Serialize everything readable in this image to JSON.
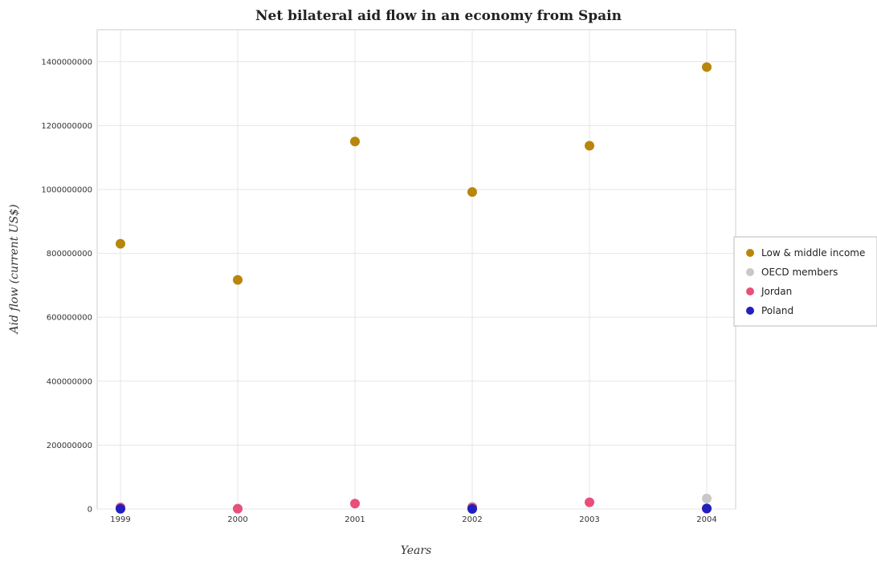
{
  "chart_data": {
    "type": "scatter",
    "title": "Net bilateral aid flow in an economy from Spain",
    "xlabel": "Years",
    "ylabel": "Aid flow (current US$)",
    "categories": [
      "1999",
      "2000",
      "2001",
      "2002",
      "2003",
      "2004"
    ],
    "ylim": [
      0,
      1500000000
    ],
    "yticks": [
      0,
      200000000,
      400000000,
      600000000,
      800000000,
      1000000000,
      1200000000,
      1400000000
    ],
    "ytick_labels": [
      "0",
      "200000000",
      "400000000",
      "600000000",
      "800000000",
      "1000000000",
      "1200000000",
      "1400000000"
    ],
    "grid": true,
    "legend_position": "right",
    "series": [
      {
        "name": "Low & middle income",
        "color": "#b8860b",
        "values": [
          830000000,
          717000000,
          1150000000,
          992000000,
          1137000000,
          1383000000
        ]
      },
      {
        "name": "OECD members",
        "color": "#c8c8c8",
        "values": [
          4000000,
          1000000,
          0,
          7000000,
          0,
          33000000
        ]
      },
      {
        "name": "Jordan",
        "color": "#e8507a",
        "values": [
          5000000,
          1000000,
          17000000,
          5000000,
          21000000,
          1000000
        ]
      },
      {
        "name": "Poland",
        "color": "#2020c0",
        "values": [
          500000,
          0,
          0,
          300000,
          0,
          2000000
        ]
      }
    ]
  }
}
